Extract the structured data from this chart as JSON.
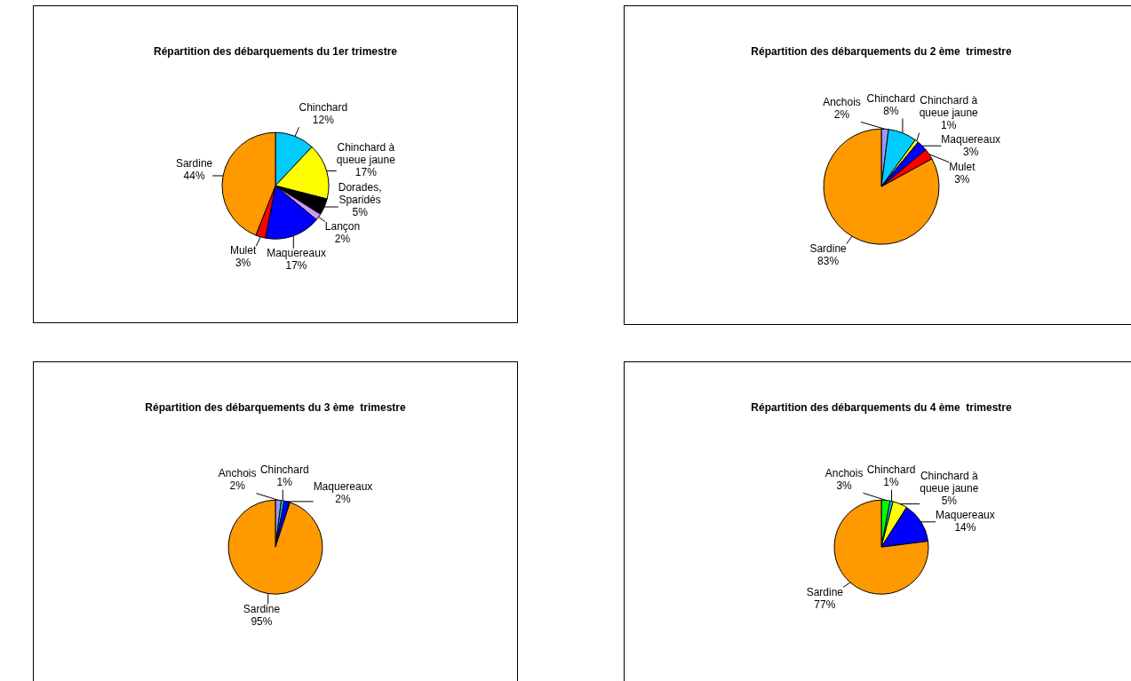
{
  "chart_data": [
    {
      "type": "pie",
      "title": "Répartition des débarquements du 1er trimestre",
      "categories": [
        "Chinchard",
        "Chinchard à queue jaune",
        "Dorades, Sparidés",
        "Lançon",
        "Maquereaux",
        "Mulet",
        "Sardine"
      ],
      "values": [
        12,
        17,
        5,
        2,
        17,
        3,
        44
      ],
      "value_labels": [
        "12%",
        "17%",
        "5%",
        "2%",
        "17%",
        "3%",
        "44%"
      ],
      "colors": [
        "#00ccff",
        "#ffff00",
        "#000000",
        "#cc99ff",
        "#0000ff",
        "#ff0000",
        "#ff9900"
      ]
    },
    {
      "type": "pie",
      "title": "Répartition des débarquements du 2 ème  trimestre",
      "categories": [
        "Anchois",
        "Chinchard",
        "Chinchard à queue jaune",
        "Maquereaux",
        "Mulet",
        "Sardine"
      ],
      "values": [
        2,
        8,
        1,
        3,
        3,
        83
      ],
      "value_labels": [
        "2%",
        "8%",
        "1%",
        "3%",
        "3%",
        "83%"
      ],
      "colors": [
        "#9999ff",
        "#00ccff",
        "#ffff00",
        "#0000ff",
        "#ff0000",
        "#ff9900"
      ]
    },
    {
      "type": "pie",
      "title": "Répartition des débarquements du 3 ème  trimestre",
      "categories": [
        "Anchois",
        "Chinchard",
        "Maquereaux",
        "Sardine"
      ],
      "values": [
        2,
        1,
        2,
        95
      ],
      "value_labels": [
        "2%",
        "1%",
        "2%",
        "95%"
      ],
      "colors": [
        "#9999ff",
        "#00ccff",
        "#0000ff",
        "#ff9900"
      ]
    },
    {
      "type": "pie",
      "title": "Répartition des débarquements du 4 ème  trimestre",
      "categories": [
        "Anchois",
        "Chinchard",
        "Chinchard à queue jaune",
        "Maquereaux",
        "Sardine"
      ],
      "values": [
        3,
        1,
        5,
        14,
        77
      ],
      "value_labels": [
        "3%",
        "1%",
        "5%",
        "14%",
        "77%"
      ],
      "colors": [
        "#00ff00",
        "#00ccff",
        "#ffff00",
        "#0000ff",
        "#ff9900"
      ]
    }
  ]
}
